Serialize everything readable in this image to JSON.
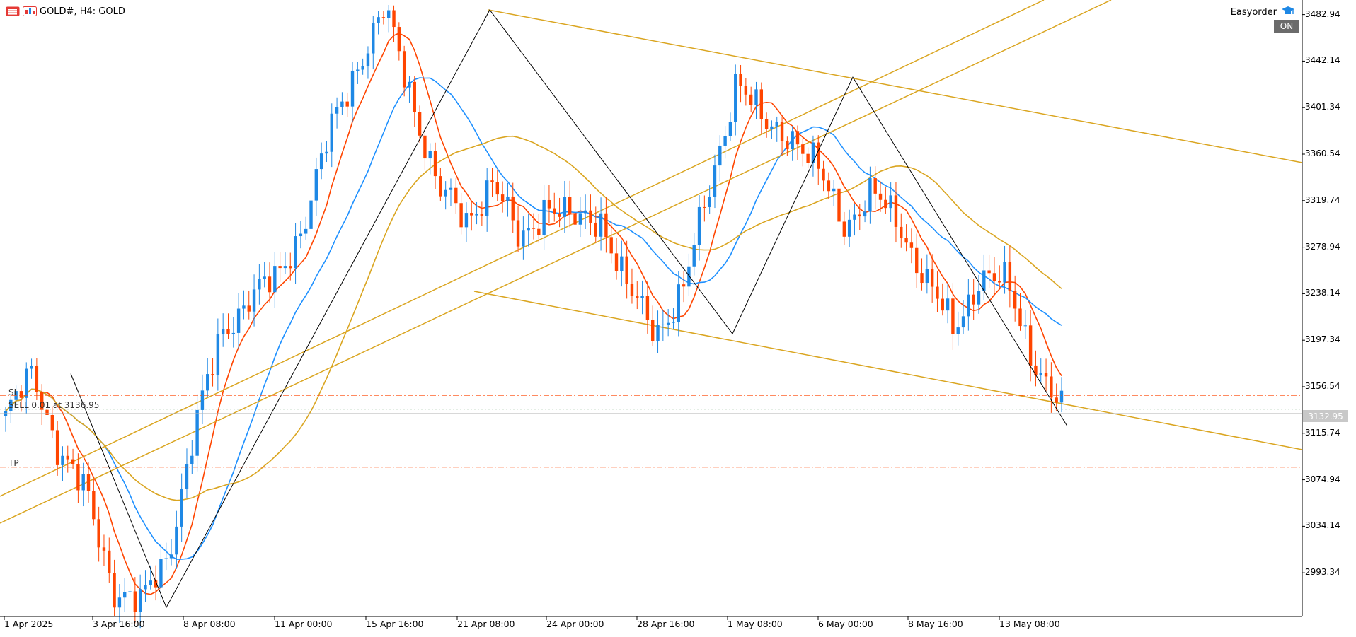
{
  "window": {
    "symbol_title": "GOLD#, H4:  GOLD",
    "easyorder_label": "Easyorder",
    "on_label": "ON",
    "current_price": "3132.95"
  },
  "trade": {
    "sl_label": "SL",
    "order_label": "SELL 0.01 at 3136.95",
    "tp_label": "TP"
  },
  "colors": {
    "bull": "#1e88e5",
    "bear": "#ff4500",
    "ma_fast": "#ff4500",
    "ma_mid": "#1e90ff",
    "ma_slow": "#daa520",
    "trendline": "#daa520",
    "zigzag": "#000000",
    "level": "#ff4500"
  },
  "price_axis": [
    "3482.94",
    "3442.14",
    "3401.34",
    "3360.54",
    "3319.74",
    "3278.94",
    "3238.14",
    "3197.34",
    "3156.54",
    "3115.74",
    "3074.94",
    "3034.14",
    "2993.34"
  ],
  "time_axis": [
    "1 Apr 2025",
    "3 Apr 16:00",
    "8 Apr 08:00",
    "11 Apr 00:00",
    "15 Apr 16:00",
    "21 Apr 08:00",
    "24 Apr 00:00",
    "28 Apr 16:00",
    "1 May 08:00",
    "6 May 00:00",
    "8 May 16:00",
    "13 May 08:00"
  ],
  "chart_data": {
    "type": "candlestick",
    "symbol": "GOLD#",
    "timeframe": "H4",
    "y_range": [
      2955,
      3492
    ],
    "levels": {
      "sl": 3149,
      "entry": 3136.95,
      "current": 3132.95,
      "tp": 3086
    },
    "zigzag": [
      3168,
      2963,
      3487,
      3203,
      3428,
      3122
    ],
    "ohlc_anchors": [
      3130,
      3168,
      3100,
      3060,
      2980,
      2965,
      3010,
      3120,
      3205,
      3235,
      3250,
      3300,
      3380,
      3440,
      3487,
      3410,
      3330,
      3300,
      3340,
      3280,
      3320,
      3300,
      3305,
      3240,
      3205,
      3240,
      3330,
      3428,
      3385,
      3380,
      3345,
      3300,
      3325,
      3300,
      3250,
      3205,
      3255,
      3245,
      3180,
      3135
    ]
  }
}
